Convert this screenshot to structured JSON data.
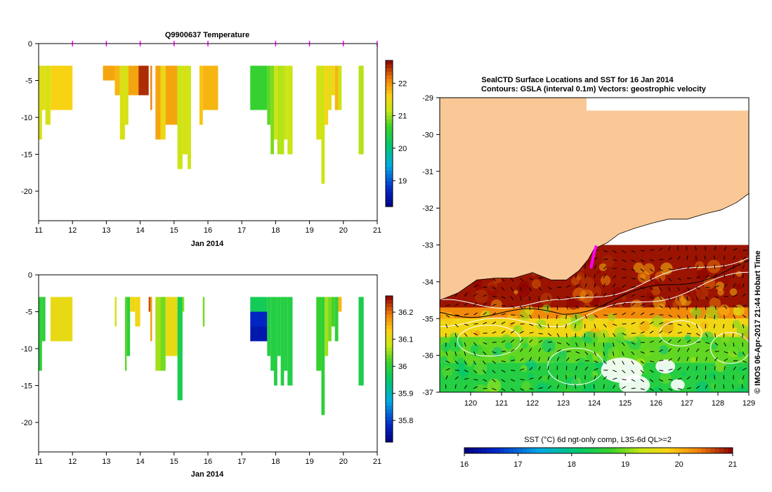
{
  "chart_data": [
    {
      "type": "heatmap",
      "title": "Q9900637  Temperature",
      "xlabel": "Jan 2014",
      "ylabel": "",
      "xlim": [
        11,
        21
      ],
      "ylim": [
        -24,
        0
      ],
      "xticks": [
        11,
        12,
        13,
        14,
        15,
        16,
        17,
        18,
        19,
        20,
        21
      ],
      "yticks": [
        0,
        -5,
        -10,
        -15,
        -20
      ],
      "colorbar": {
        "ticks": [
          19,
          20,
          21,
          22
        ],
        "range": [
          18.2,
          22.7
        ]
      },
      "profile_markers": [
        12.0,
        13.0,
        14.0,
        15.0,
        16.0,
        18.0,
        19.0,
        20.0,
        21.0
      ],
      "profiles": [
        {
          "x0": 11.0,
          "x1": 11.1,
          "top": -3,
          "bottom": -13,
          "value": 21.3
        },
        {
          "x0": 11.1,
          "x1": 11.2,
          "top": -3,
          "bottom": -9,
          "value": 21.4
        },
        {
          "x0": 11.2,
          "x1": 11.35,
          "top": -3,
          "bottom": -11,
          "value": 21.3
        },
        {
          "x0": 11.35,
          "x1": 12.0,
          "top": -3,
          "bottom": -9,
          "value": 21.6
        },
        {
          "x0": 12.9,
          "x1": 13.25,
          "top": -3,
          "bottom": -5,
          "value": 21.9
        },
        {
          "x0": 13.25,
          "x1": 13.4,
          "top": -3,
          "bottom": -7,
          "value": 21.8
        },
        {
          "x0": 13.4,
          "x1": 13.55,
          "top": -3,
          "bottom": -13,
          "value": 21.3
        },
        {
          "x0": 13.55,
          "x1": 13.65,
          "top": -3,
          "bottom": -11,
          "value": 21.3
        },
        {
          "x0": 13.65,
          "x1": 13.95,
          "top": -3,
          "bottom": -7,
          "value": 21.9
        },
        {
          "x0": 13.95,
          "x1": 14.25,
          "top": -3,
          "bottom": -7,
          "value": 22.5
        },
        {
          "x0": 14.3,
          "x1": 14.35,
          "top": -3,
          "bottom": -9,
          "value": 22.1
        },
        {
          "x0": 14.45,
          "x1": 14.6,
          "top": -3,
          "bottom": -13,
          "value": 21.9
        },
        {
          "x0": 14.6,
          "x1": 14.75,
          "top": -3,
          "bottom": -13,
          "value": 21.5
        },
        {
          "x0": 14.75,
          "x1": 15.1,
          "top": -3,
          "bottom": -11,
          "value": 21.9
        },
        {
          "x0": 15.1,
          "x1": 15.25,
          "top": -3,
          "bottom": -17,
          "value": 21.2
        },
        {
          "x0": 15.25,
          "x1": 15.4,
          "top": -3,
          "bottom": -15,
          "value": 21.3
        },
        {
          "x0": 15.4,
          "x1": 15.5,
          "top": -3,
          "bottom": -17,
          "value": 21.2
        },
        {
          "x0": 15.75,
          "x1": 15.85,
          "top": -3,
          "bottom": -11,
          "value": 21.7
        },
        {
          "x0": 15.85,
          "x1": 16.3,
          "top": -3,
          "bottom": -9,
          "value": 21.8
        },
        {
          "x0": 17.25,
          "x1": 17.75,
          "top": -3,
          "bottom": -9,
          "value": 20.6
        },
        {
          "x0": 17.75,
          "x1": 17.85,
          "top": -3,
          "bottom": -11,
          "value": 20.8
        },
        {
          "x0": 17.85,
          "x1": 17.95,
          "top": -3,
          "bottom": -15,
          "value": 20.9
        },
        {
          "x0": 17.95,
          "x1": 18.05,
          "top": -3,
          "bottom": -13,
          "value": 21.2
        },
        {
          "x0": 18.05,
          "x1": 18.25,
          "top": -3,
          "bottom": -15,
          "value": 21.1
        },
        {
          "x0": 18.25,
          "x1": 18.35,
          "top": -3,
          "bottom": -13,
          "value": 21.2
        },
        {
          "x0": 18.35,
          "x1": 18.5,
          "top": -3,
          "bottom": -15,
          "value": 21.2
        },
        {
          "x0": 19.2,
          "x1": 19.35,
          "top": -3,
          "bottom": -13,
          "value": 21.3
        },
        {
          "x0": 19.35,
          "x1": 19.45,
          "top": -3,
          "bottom": -19,
          "value": 21.2
        },
        {
          "x0": 19.45,
          "x1": 19.55,
          "top": -3,
          "bottom": -11,
          "value": 21.6
        },
        {
          "x0": 19.55,
          "x1": 19.65,
          "top": -3,
          "bottom": -9,
          "value": 21.4
        },
        {
          "x0": 19.65,
          "x1": 19.75,
          "top": -3,
          "bottom": -7,
          "value": 21.5
        },
        {
          "x0": 19.75,
          "x1": 19.85,
          "top": -3,
          "bottom": -9,
          "value": 21.8
        },
        {
          "x0": 19.85,
          "x1": 19.95,
          "top": -3,
          "bottom": -9,
          "value": 21.2
        },
        {
          "x0": 20.45,
          "x1": 20.6,
          "top": -3,
          "bottom": -15,
          "value": 21.1
        }
      ]
    },
    {
      "type": "heatmap",
      "title": "",
      "xlabel": "Jan 2014",
      "ylabel": "",
      "xlim": [
        11,
        21
      ],
      "ylim": [
        -24,
        0
      ],
      "xticks": [
        11,
        12,
        13,
        14,
        15,
        16,
        17,
        18,
        19,
        20,
        21
      ],
      "yticks": [
        0,
        -5,
        -10,
        -15,
        -20
      ],
      "colorbar": {
        "ticks": [
          35.8,
          35.9,
          36,
          36.1,
          36.2
        ],
        "range": [
          35.72,
          36.26
        ]
      },
      "profiles": [
        {
          "x0": 11.0,
          "x1": 11.1,
          "top": -3,
          "bottom": -13,
          "value": 36.0
        },
        {
          "x0": 11.1,
          "x1": 11.2,
          "top": -3,
          "bottom": -9,
          "value": 36.0
        },
        {
          "x0": 11.35,
          "x1": 12.0,
          "top": -3,
          "bottom": -9,
          "value": 36.11
        },
        {
          "x0": 13.25,
          "x1": 13.3,
          "top": -3,
          "bottom": -7,
          "value": 36.08
        },
        {
          "x0": 13.55,
          "x1": 13.6,
          "top": -3,
          "bottom": -13,
          "value": 36.03
        },
        {
          "x0": 13.6,
          "x1": 13.7,
          "top": -3,
          "bottom": -11,
          "value": 36.0
        },
        {
          "x0": 13.7,
          "x1": 13.85,
          "top": -3,
          "bottom": -5,
          "value": 36.12
        },
        {
          "x0": 13.85,
          "x1": 14.0,
          "top": -3,
          "bottom": -7,
          "value": 36.12
        },
        {
          "x0": 14.25,
          "x1": 14.3,
          "top": -3,
          "bottom": -5,
          "value": 36.22
        },
        {
          "x0": 14.3,
          "x1": 14.35,
          "top": -3,
          "bottom": -9,
          "value": 36.17
        },
        {
          "x0": 14.45,
          "x1": 14.6,
          "top": -3,
          "bottom": -13,
          "value": 36.06
        },
        {
          "x0": 14.6,
          "x1": 14.75,
          "top": -3,
          "bottom": -13,
          "value": 36.04
        },
        {
          "x0": 14.75,
          "x1": 15.1,
          "top": -3,
          "bottom": -11,
          "value": 36.11
        },
        {
          "x0": 15.1,
          "x1": 15.25,
          "top": -3,
          "bottom": -17,
          "value": 35.98
        },
        {
          "x0": 15.25,
          "x1": 15.3,
          "top": -3,
          "bottom": -5,
          "value": 36.05
        },
        {
          "x0": 15.85,
          "x1": 15.9,
          "top": -3,
          "bottom": -7,
          "value": 36.04
        },
        {
          "x0": 17.25,
          "x1": 17.75,
          "top": -3,
          "bottom": -5,
          "value": 35.97
        },
        {
          "x0": 17.25,
          "x1": 17.75,
          "top": -5,
          "bottom": -7,
          "value": 35.78
        },
        {
          "x0": 17.25,
          "x1": 17.75,
          "top": -7,
          "bottom": -9,
          "value": 35.76
        },
        {
          "x0": 17.75,
          "x1": 17.85,
          "top": -3,
          "bottom": -11,
          "value": 35.99
        },
        {
          "x0": 17.85,
          "x1": 17.95,
          "top": -3,
          "bottom": -13,
          "value": 35.99
        },
        {
          "x0": 17.95,
          "x1": 18.05,
          "top": -3,
          "bottom": -15,
          "value": 35.99
        },
        {
          "x0": 18.05,
          "x1": 18.15,
          "top": -3,
          "bottom": -11,
          "value": 35.99
        },
        {
          "x0": 18.15,
          "x1": 18.25,
          "top": -3,
          "bottom": -15,
          "value": 35.99
        },
        {
          "x0": 18.25,
          "x1": 18.35,
          "top": -3,
          "bottom": -13,
          "value": 35.99
        },
        {
          "x0": 18.35,
          "x1": 18.5,
          "top": -3,
          "bottom": -15,
          "value": 35.99
        },
        {
          "x0": 19.2,
          "x1": 19.35,
          "top": -3,
          "bottom": -13,
          "value": 36.01
        },
        {
          "x0": 19.35,
          "x1": 19.45,
          "top": -3,
          "bottom": -19,
          "value": 36.0
        },
        {
          "x0": 19.45,
          "x1": 19.55,
          "top": -3,
          "bottom": -11,
          "value": 36.06
        },
        {
          "x0": 19.55,
          "x1": 19.65,
          "top": -3,
          "bottom": -9,
          "value": 36.04
        },
        {
          "x0": 19.65,
          "x1": 19.75,
          "top": -3,
          "bottom": -7,
          "value": 36.02
        },
        {
          "x0": 19.75,
          "x1": 19.85,
          "top": -3,
          "bottom": -9,
          "value": 36.0
        },
        {
          "x0": 19.85,
          "x1": 19.95,
          "top": -3,
          "bottom": -5,
          "value": 36.15
        },
        {
          "x0": 20.45,
          "x1": 20.6,
          "top": -3,
          "bottom": -15,
          "value": 35.98
        }
      ]
    },
    {
      "type": "heatmap",
      "title": "SealCTD Surface Locations and SST for 16 Jan 2014",
      "subtitle": "Contours: GSLA (interval 0.1m) Vectors: geostrophic velocity",
      "xlabel": "",
      "ylabel": "",
      "xlim": [
        119,
        129
      ],
      "ylim": [
        -37,
        -29
      ],
      "xticks": [
        120,
        121,
        122,
        123,
        124,
        125,
        126,
        127,
        128,
        129
      ],
      "yticks": [
        -29,
        -30,
        -31,
        -32,
        -33,
        -34,
        -35,
        -36,
        -37
      ],
      "colorbar": {
        "label": "SST (°C) 6d ngt-only comp, L3S-6d QL>=2",
        "ticks": [
          16,
          17,
          18,
          19,
          20,
          21
        ],
        "range": [
          16,
          21
        ]
      },
      "coastline": [
        [
          119,
          -34.5
        ],
        [
          119.6,
          -34.3
        ],
        [
          120.2,
          -33.95
        ],
        [
          120.8,
          -33.9
        ],
        [
          121.4,
          -33.9
        ],
        [
          122.0,
          -33.75
        ],
        [
          122.6,
          -33.95
        ],
        [
          123.1,
          -33.95
        ],
        [
          123.5,
          -33.7
        ],
        [
          123.8,
          -33.4
        ],
        [
          124.0,
          -33.1
        ],
        [
          124.4,
          -32.95
        ],
        [
          124.8,
          -32.7
        ],
        [
          125.3,
          -32.55
        ],
        [
          125.9,
          -32.4
        ],
        [
          126.4,
          -32.3
        ],
        [
          127.0,
          -32.3
        ],
        [
          127.6,
          -32.15
        ],
        [
          128.1,
          -32.05
        ],
        [
          128.6,
          -31.85
        ],
        [
          129,
          -31.6
        ]
      ],
      "seal_track": [
        [
          123.9,
          -33.6
        ],
        [
          123.95,
          -33.4
        ],
        [
          124.0,
          -33.2
        ],
        [
          124.05,
          -33.05
        ]
      ],
      "sst_bands": [
        {
          "lat_top": -33.0,
          "lat_bottom": -34.7,
          "value": 20.9
        },
        {
          "lat_top": -34.7,
          "lat_bottom": -35.0,
          "value": 20.3
        },
        {
          "lat_top": -35.0,
          "lat_bottom": -35.5,
          "value": 19.7
        },
        {
          "lat_top": -35.5,
          "lat_bottom": -36.2,
          "value": 18.9
        },
        {
          "lat_top": -36.2,
          "lat_bottom": -37.0,
          "value": 18.5
        }
      ]
    }
  ],
  "timestamp": "© IMOS 06-Apr-2017 21:44 Hobart Time",
  "colors": {
    "land": "#fac896",
    "track": "#ff00ff",
    "axis": "#000000"
  }
}
